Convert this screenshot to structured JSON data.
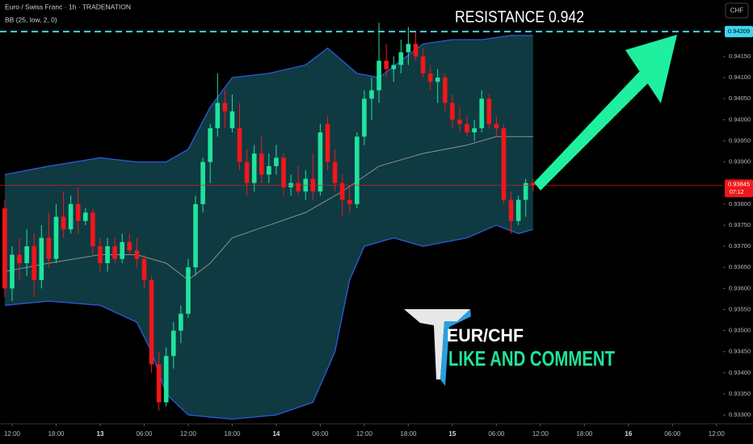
{
  "chart_data": {
    "type": "candlestick",
    "title": "Euro / Swiss Franc · 1h · TRADENATION",
    "indicator": "BB (25, low, 2, 0)",
    "currency_button": "CHF",
    "annotation": "RESISTANCE  0.942",
    "logo_text": "EUR/CHF",
    "call_to_action": "LIKE AND COMMENT",
    "resistance": 0.94209,
    "resistance_color": "#3fd5f0",
    "last_price": 0.93845,
    "last_price_timer": "07:12",
    "last_price_color": "#f0171b",
    "up_color": "#1fe39c",
    "down_color": "#f0171b",
    "band_color": "#2d5bd8",
    "band_fill": "#0f3a42",
    "middle_color": "#8a8f94",
    "xlim": [
      -1.65,
      96.9
    ],
    "ylim": [
      0.93279,
      0.94284
    ],
    "xticks": [
      {
        "value": 0,
        "label": "12:00"
      },
      {
        "value": 6,
        "label": "18:00"
      },
      {
        "value": 12,
        "label": "13"
      },
      {
        "value": 18,
        "label": "06:00"
      },
      {
        "value": 24,
        "label": "12:00"
      },
      {
        "value": 30,
        "label": "18:00"
      },
      {
        "value": 36,
        "label": "14"
      },
      {
        "value": 42,
        "label": "06:00"
      },
      {
        "value": 48,
        "label": "12:00"
      },
      {
        "value": 54,
        "label": "18:00"
      },
      {
        "value": 60,
        "label": "15"
      },
      {
        "value": 66,
        "label": "06:00"
      },
      {
        "value": 72,
        "label": "12:00"
      },
      {
        "value": 78,
        "label": "18:00"
      },
      {
        "value": 84,
        "label": "16"
      },
      {
        "value": 90,
        "label": "06:00"
      },
      {
        "value": 96,
        "label": "12:00"
      }
    ],
    "yticks": [
      {
        "value": 0.933,
        "label": "0.93300"
      },
      {
        "value": 0.9335,
        "label": "0.93350"
      },
      {
        "value": 0.934,
        "label": "0.93400"
      },
      {
        "value": 0.9345,
        "label": "0.93450"
      },
      {
        "value": 0.935,
        "label": "0.93500"
      },
      {
        "value": 0.9355,
        "label": "0.93550"
      },
      {
        "value": 0.936,
        "label": "0.93600"
      },
      {
        "value": 0.9365,
        "label": "0.93650"
      },
      {
        "value": 0.937,
        "label": "0.93700"
      },
      {
        "value": 0.9375,
        "label": "0.93750"
      },
      {
        "value": 0.938,
        "label": "0.93800"
      },
      {
        "value": 0.939,
        "label": "0.93900"
      },
      {
        "value": 0.9395,
        "label": "0.93950"
      },
      {
        "value": 0.94,
        "label": "0.94000"
      },
      {
        "value": 0.9405,
        "label": "0.94050"
      },
      {
        "value": 0.941,
        "label": "0.94100"
      },
      {
        "value": 0.9415,
        "label": "0.94150"
      }
    ],
    "x": [
      -1,
      0,
      1,
      2,
      3,
      4,
      5,
      6,
      7,
      8,
      9,
      10,
      11,
      12,
      13,
      14,
      15,
      16,
      17,
      18,
      19,
      20,
      21,
      22,
      23,
      24,
      25,
      26,
      27,
      28,
      29,
      30,
      31,
      32,
      33,
      34,
      35,
      36,
      37,
      38,
      39,
      40,
      41,
      42,
      43,
      44,
      45,
      46,
      47,
      48,
      49,
      50,
      51,
      52,
      53,
      54,
      55,
      56,
      57,
      58,
      59,
      60,
      61,
      62,
      63,
      64,
      65,
      66,
      67,
      68,
      69,
      70,
      71
    ],
    "ohlc": [
      [
        0.9379,
        0.9381,
        0.9358,
        0.936
      ],
      [
        0.936,
        0.937,
        0.9357,
        0.9368
      ],
      [
        0.9368,
        0.9372,
        0.9362,
        0.9366
      ],
      [
        0.9366,
        0.9374,
        0.9363,
        0.937
      ],
      [
        0.937,
        0.9373,
        0.9358,
        0.9362
      ],
      [
        0.9362,
        0.9375,
        0.936,
        0.9372
      ],
      [
        0.9372,
        0.9378,
        0.9365,
        0.9367
      ],
      [
        0.9367,
        0.938,
        0.9366,
        0.9377
      ],
      [
        0.9377,
        0.9383,
        0.9372,
        0.9374
      ],
      [
        0.9374,
        0.9382,
        0.9373,
        0.938
      ],
      [
        0.938,
        0.9384,
        0.9373,
        0.9376
      ],
      [
        0.9376,
        0.9379,
        0.9375,
        0.9378
      ],
      [
        0.9378,
        0.9379,
        0.9368,
        0.937
      ],
      [
        0.937,
        0.9372,
        0.9364,
        0.9366
      ],
      [
        0.9366,
        0.9372,
        0.9364,
        0.937
      ],
      [
        0.937,
        0.9372,
        0.9366,
        0.9367
      ],
      [
        0.9367,
        0.9373,
        0.9366,
        0.9371
      ],
      [
        0.9371,
        0.9373,
        0.9368,
        0.9369
      ],
      [
        0.9369,
        0.9372,
        0.9365,
        0.9367
      ],
      [
        0.9367,
        0.9368,
        0.936,
        0.9362
      ],
      [
        0.9362,
        0.9363,
        0.934,
        0.9342
      ],
      [
        0.9342,
        0.9345,
        0.9331,
        0.9333
      ],
      [
        0.9333,
        0.9346,
        0.9332,
        0.9344
      ],
      [
        0.9344,
        0.9352,
        0.9341,
        0.935
      ],
      [
        0.935,
        0.9356,
        0.9347,
        0.9354
      ],
      [
        0.9354,
        0.9367,
        0.9353,
        0.9365
      ],
      [
        0.9365,
        0.9382,
        0.9363,
        0.938
      ],
      [
        0.938,
        0.9391,
        0.9378,
        0.939
      ],
      [
        0.939,
        0.9399,
        0.9385,
        0.9398
      ],
      [
        0.9398,
        0.9411,
        0.9396,
        0.9404
      ],
      [
        0.9404,
        0.9407,
        0.9398,
        0.9402
      ],
      [
        0.9398,
        0.9406,
        0.9397,
        0.9402
      ],
      [
        0.9398,
        0.9404,
        0.9388,
        0.939
      ],
      [
        0.939,
        0.9393,
        0.9382,
        0.9385
      ],
      [
        0.9385,
        0.9394,
        0.9383,
        0.9392
      ],
      [
        0.9392,
        0.9396,
        0.9385,
        0.9387
      ],
      [
        0.9387,
        0.9392,
        0.9385,
        0.9389
      ],
      [
        0.9389,
        0.9394,
        0.9387,
        0.9391
      ],
      [
        0.9391,
        0.9392,
        0.9382,
        0.9384
      ],
      [
        0.9384,
        0.9387,
        0.9382,
        0.9385
      ],
      [
        0.9385,
        0.9389,
        0.9382,
        0.9383
      ],
      [
        0.9383,
        0.9388,
        0.9381,
        0.9386
      ],
      [
        0.9386,
        0.9392,
        0.9381,
        0.9383
      ],
      [
        0.9383,
        0.9399,
        0.9382,
        0.9397
      ],
      [
        0.9399,
        0.9401,
        0.9388,
        0.939
      ],
      [
        0.939,
        0.9393,
        0.9383,
        0.9385
      ],
      [
        0.9385,
        0.9387,
        0.9377,
        0.9381
      ],
      [
        0.9381,
        0.9384,
        0.9378,
        0.938
      ],
      [
        0.938,
        0.9397,
        0.9379,
        0.9396
      ],
      [
        0.9396,
        0.9407,
        0.9394,
        0.9405
      ],
      [
        0.9405,
        0.941,
        0.94,
        0.9407
      ],
      [
        0.9407,
        0.9423,
        0.9404,
        0.9414
      ],
      [
        0.9414,
        0.9418,
        0.941,
        0.9412
      ],
      [
        0.9412,
        0.9415,
        0.9409,
        0.9413
      ],
      [
        0.9413,
        0.9419,
        0.9411,
        0.9416
      ],
      [
        0.9416,
        0.9422,
        0.9413,
        0.9418
      ],
      [
        0.9418,
        0.9421,
        0.9414,
        0.9415
      ],
      [
        0.9415,
        0.9417,
        0.941,
        0.9411
      ],
      [
        0.9411,
        0.9413,
        0.9407,
        0.9409
      ],
      [
        0.9409,
        0.9412,
        0.9404,
        0.941
      ],
      [
        0.941,
        0.9411,
        0.9402,
        0.9404
      ],
      [
        0.9404,
        0.9406,
        0.9398,
        0.94
      ],
      [
        0.94,
        0.9403,
        0.9397,
        0.9399
      ],
      [
        0.9399,
        0.9401,
        0.9396,
        0.9397
      ],
      [
        0.9397,
        0.94,
        0.9395,
        0.9398
      ],
      [
        0.9398,
        0.9407,
        0.9397,
        0.9405
      ],
      [
        0.9405,
        0.9406,
        0.9398,
        0.9399
      ],
      [
        0.9399,
        0.9401,
        0.9396,
        0.9398
      ],
      [
        0.9398,
        0.9399,
        0.938,
        0.9381
      ],
      [
        0.9381,
        0.9383,
        0.9373,
        0.9376
      ],
      [
        0.9376,
        0.9382,
        0.9375,
        0.9381
      ],
      [
        0.9381,
        0.9386,
        0.9377,
        0.9385
      ],
      [
        0.9385,
        0.9386,
        0.9383,
        0.93845
      ]
    ],
    "bands": {
      "upper": {
        "x": [
          -1,
          5,
          12,
          17,
          21,
          24,
          27,
          30,
          35,
          40,
          43,
          47,
          50,
          53,
          56,
          60,
          64,
          68,
          71
        ],
        "values": [
          0.9387,
          0.9389,
          0.9391,
          0.939,
          0.939,
          0.9393,
          0.9403,
          0.941,
          0.9411,
          0.9413,
          0.9417,
          0.9411,
          0.941,
          0.9414,
          0.9418,
          0.9419,
          0.9419,
          0.942,
          0.942
        ]
      },
      "middle": {
        "x": [
          -1,
          5,
          12,
          17,
          21,
          24,
          27,
          30,
          35,
          40,
          45,
          50,
          56,
          62,
          66,
          71
        ],
        "values": [
          0.9364,
          0.9366,
          0.9368,
          0.9368,
          0.9366,
          0.9362,
          0.9366,
          0.9372,
          0.9375,
          0.9378,
          0.9383,
          0.9389,
          0.9392,
          0.9394,
          0.9396,
          0.9396
        ]
      },
      "lower": {
        "x": [
          -1,
          5,
          12,
          17,
          19,
          21,
          24,
          30,
          36,
          41,
          44,
          46,
          48,
          52,
          56,
          62,
          66,
          69,
          71
        ],
        "values": [
          0.9356,
          0.9357,
          0.9356,
          0.9352,
          0.9345,
          0.9335,
          0.933,
          0.9329,
          0.933,
          0.9333,
          0.9345,
          0.9362,
          0.937,
          0.9372,
          0.937,
          0.9372,
          0.9375,
          0.9373,
          0.9374
        ]
      }
    }
  }
}
